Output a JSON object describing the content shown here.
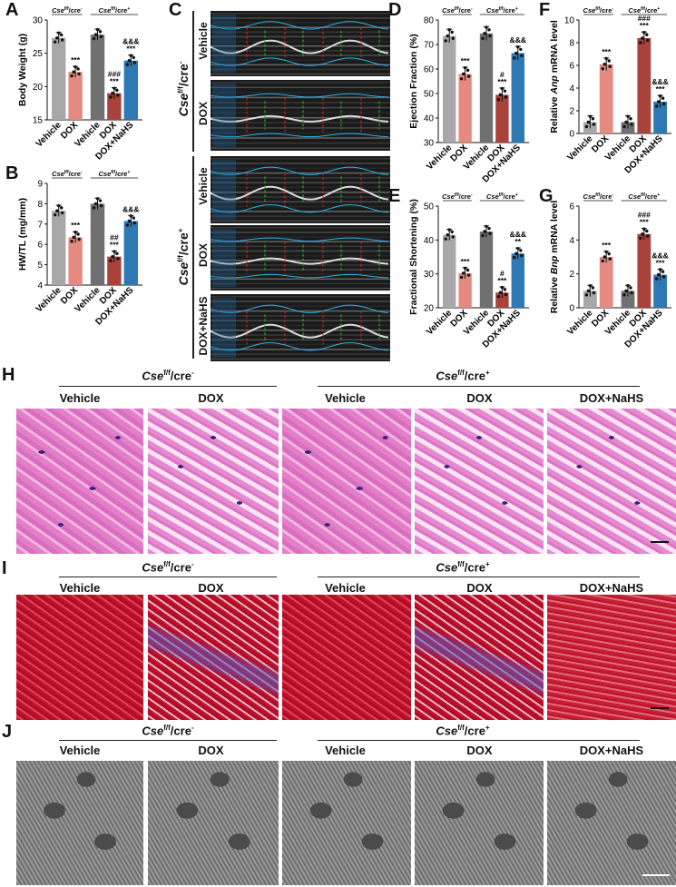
{
  "panels": {
    "A": "A",
    "B": "B",
    "C": "C",
    "D": "D",
    "E": "E",
    "F": "F",
    "G": "G",
    "H": "H",
    "I": "I",
    "J": "J"
  },
  "groups": {
    "cre_minus_base": "Cse",
    "cre_minus_sup": "f/f",
    "cre_minus_suffix": "/cre",
    "cre_minus_sign": "-",
    "cre_plus_base": "Cse",
    "cre_plus_sup": "f/f",
    "cre_plus_suffix": "/cre",
    "cre_plus_sign": "+"
  },
  "conditions": {
    "vehicle": "Vehicle",
    "dox": "DOX",
    "dox_nahs": "DOX+NaHS"
  },
  "colors": {
    "veh_minus": "#a8a8a8",
    "dox_minus": "#e58a80",
    "veh_plus": "#707070",
    "dox_plus": "#a8423a",
    "nahs": "#2e78b4"
  },
  "chart_data": [
    {
      "id": "A",
      "type": "bar",
      "ylabel": "Body Weight (g)",
      "ylim": [
        15,
        30
      ],
      "yticks": [
        15,
        20,
        25,
        30
      ],
      "categories": [
        "Vehicle",
        "DOX",
        "Vehicle",
        "DOX",
        "DOX+NaHS"
      ],
      "values": [
        27.3,
        22.2,
        27.8,
        19.0,
        23.9
      ],
      "sig": [
        "",
        "***",
        "",
        "###\n***",
        "&&&\n***"
      ]
    },
    {
      "id": "B",
      "type": "bar",
      "ylabel": "HW/TL (mg/mm)",
      "ylim": [
        4,
        9
      ],
      "yticks": [
        4,
        5,
        6,
        7,
        8,
        9
      ],
      "categories": [
        "Vehicle",
        "DOX",
        "Vehicle",
        "DOX",
        "DOX+NaHS"
      ],
      "values": [
        7.65,
        6.35,
        8.0,
        5.4,
        7.15
      ],
      "sig": [
        "",
        "***",
        "",
        "##\n***",
        "&&&"
      ]
    },
    {
      "id": "D",
      "type": "bar",
      "ylabel": "Ejection Fraction (%)",
      "ylim": [
        30,
        80
      ],
      "yticks": [
        30,
        40,
        50,
        60,
        70,
        80
      ],
      "categories": [
        "Vehicle",
        "DOX",
        "Vehicle",
        "DOX",
        "DOX+NaHS"
      ],
      "values": [
        73.5,
        58.0,
        74.5,
        49.5,
        66.5
      ],
      "sig": [
        "",
        "***",
        "",
        "#\n***",
        "&&&"
      ]
    },
    {
      "id": "E",
      "type": "bar",
      "ylabel": "Fractional Shortening (%)",
      "ylim": [
        20,
        50
      ],
      "yticks": [
        20,
        30,
        40,
        50
      ],
      "categories": [
        "Vehicle",
        "DOX",
        "Vehicle",
        "DOX",
        "DOX+NaHS"
      ],
      "values": [
        41.5,
        30.2,
        42.5,
        24.5,
        36.0
      ],
      "sig": [
        "",
        "***",
        "",
        "#\n***",
        "&&&\n**"
      ]
    },
    {
      "id": "F",
      "type": "bar",
      "ylabel_pre": "Relative ",
      "ylabel_gene": "Anp",
      "ylabel_post": " mRNA level",
      "ylim": [
        0,
        10
      ],
      "yticks": [
        0,
        2,
        4,
        6,
        8,
        10
      ],
      "categories": [
        "Vehicle",
        "DOX",
        "Vehicle",
        "DOX",
        "DOX+NaHS"
      ],
      "values": [
        1.0,
        6.1,
        1.0,
        8.4,
        2.8
      ],
      "sig": [
        "",
        "***",
        "",
        "###\n***",
        "&&&\n***"
      ]
    },
    {
      "id": "G",
      "type": "bar",
      "ylabel_pre": "Relative ",
      "ylabel_gene": "Bnp",
      "ylabel_post": " mRNA level",
      "ylim": [
        0,
        6
      ],
      "yticks": [
        0,
        2,
        4,
        6
      ],
      "categories": [
        "Vehicle",
        "DOX",
        "Vehicle",
        "DOX",
        "DOX+NaHS"
      ],
      "values": [
        1.0,
        3.0,
        1.0,
        4.35,
        1.95
      ],
      "sig": [
        "",
        "***",
        "",
        "###\n***",
        "&&&\n***"
      ]
    }
  ],
  "echo": {
    "rows": [
      "Vehicle",
      "DOX",
      "Vehicle",
      "DOX",
      "DOX+NaHS"
    ]
  }
}
